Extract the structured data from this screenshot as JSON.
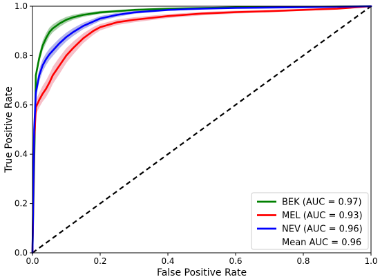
{
  "chart_data": {
    "type": "line",
    "title": "",
    "xlabel": "False Positive Rate",
    "ylabel": "True Positive Rate",
    "xlim": [
      0.0,
      1.0
    ],
    "ylim": [
      0.0,
      1.0
    ],
    "xticks": [
      "0.0",
      "0.2",
      "0.4",
      "0.6",
      "0.8",
      "1.0"
    ],
    "yticks": [
      "0.0",
      "0.2",
      "0.4",
      "0.6",
      "0.8",
      "1.0"
    ],
    "grid": false,
    "legend_position": "lower-right",
    "series": [
      {
        "name": "BEK (AUC = 0.97)",
        "color": "#008000",
        "band_color": "#8fbf8f",
        "x": [
          0.0,
          0.01,
          0.02,
          0.03,
          0.04,
          0.05,
          0.06,
          0.08,
          0.1,
          0.12,
          0.15,
          0.2,
          0.3,
          0.4,
          0.5,
          0.6,
          0.8,
          1.0
        ],
        "y": [
          0.0,
          0.72,
          0.79,
          0.84,
          0.87,
          0.895,
          0.91,
          0.93,
          0.945,
          0.955,
          0.965,
          0.975,
          0.985,
          0.99,
          0.993,
          0.995,
          0.997,
          1.0
        ],
        "band": [
          0.0,
          0.02,
          0.02,
          0.02,
          0.02,
          0.018,
          0.016,
          0.014,
          0.012,
          0.01,
          0.008,
          0.006,
          0.004,
          0.003,
          0.002,
          0.002,
          0.001,
          0.0
        ]
      },
      {
        "name": "MEL (AUC = 0.93)",
        "color": "#ff0000",
        "band_color": "#f3a9b6",
        "x": [
          0.0,
          0.005,
          0.01,
          0.02,
          0.03,
          0.04,
          0.05,
          0.06,
          0.08,
          0.1,
          0.12,
          0.15,
          0.18,
          0.2,
          0.25,
          0.3,
          0.4,
          0.5,
          0.6,
          0.7,
          0.8,
          0.9,
          1.0
        ],
        "y": [
          0.0,
          0.45,
          0.59,
          0.62,
          0.645,
          0.665,
          0.69,
          0.72,
          0.76,
          0.8,
          0.83,
          0.87,
          0.9,
          0.915,
          0.935,
          0.945,
          0.96,
          0.97,
          0.976,
          0.98,
          0.985,
          0.99,
          1.0
        ],
        "band": [
          0.0,
          0.02,
          0.03,
          0.03,
          0.032,
          0.034,
          0.035,
          0.035,
          0.034,
          0.03,
          0.026,
          0.02,
          0.016,
          0.013,
          0.011,
          0.01,
          0.008,
          0.007,
          0.006,
          0.005,
          0.004,
          0.003,
          0.0
        ]
      },
      {
        "name": "NEV (AUC = 0.96)",
        "color": "#0000ff",
        "band_color": "#9b9be3",
        "x": [
          0.0,
          0.005,
          0.01,
          0.02,
          0.03,
          0.04,
          0.05,
          0.06,
          0.08,
          0.1,
          0.12,
          0.15,
          0.2,
          0.25,
          0.3,
          0.4,
          0.5,
          0.6,
          0.8,
          1.0
        ],
        "y": [
          0.0,
          0.5,
          0.65,
          0.72,
          0.76,
          0.785,
          0.805,
          0.82,
          0.85,
          0.875,
          0.895,
          0.92,
          0.95,
          0.965,
          0.975,
          0.985,
          0.99,
          0.993,
          0.996,
          1.0
        ],
        "band": [
          0.0,
          0.02,
          0.025,
          0.025,
          0.025,
          0.024,
          0.023,
          0.022,
          0.02,
          0.018,
          0.016,
          0.013,
          0.01,
          0.008,
          0.006,
          0.004,
          0.003,
          0.002,
          0.001,
          0.0
        ]
      }
    ],
    "reference_line": {
      "x": [
        0.0,
        1.0
      ],
      "y": [
        0.0,
        1.0
      ],
      "color": "#000000",
      "style": "dashed"
    },
    "legend_extra": "Mean AUC = 0.96"
  }
}
